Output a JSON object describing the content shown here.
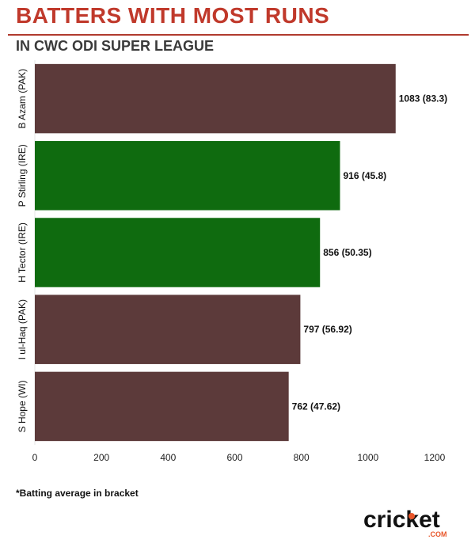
{
  "title": "BATTERS WITH MOST RUNS",
  "subtitle": "IN CWC ODI SUPER LEAGUE",
  "footnote": "*Batting average in bracket",
  "logo": {
    "text": "cricket",
    "suffix": ".COM"
  },
  "colors": {
    "title": "#c0392b",
    "pak_wi": "#5c3a3a",
    "ire": "#0f6b0f",
    "logo_dot": "#e8562a"
  },
  "chart_data": {
    "type": "bar",
    "orientation": "horizontal",
    "categories": [
      "B Azam (PAK)",
      "P Stirling (IRE)",
      "H Tector (IRE)",
      "I ul-Haq (PAK)",
      "S Hope (WI)"
    ],
    "values": [
      1083,
      916,
      856,
      797,
      762
    ],
    "data_labels": [
      "1083 (83.3)",
      "916 (45.8)",
      "856 (50.35)",
      "797 (56.92)",
      "762 (47.62)"
    ],
    "bar_colors": [
      "#5c3a3a",
      "#0f6b0f",
      "#0f6b0f",
      "#5c3a3a",
      "#5c3a3a"
    ],
    "xticks": [
      0,
      200,
      400,
      600,
      800,
      1000,
      1200
    ],
    "xlim": [
      0,
      1200
    ],
    "grid": false,
    "legend": "none"
  }
}
